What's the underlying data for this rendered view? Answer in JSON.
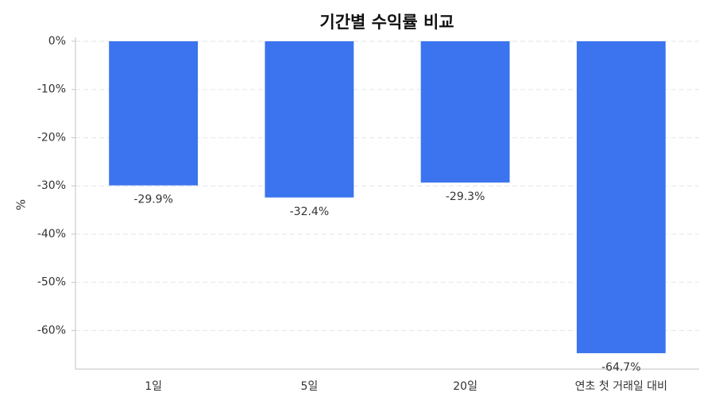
{
  "chart_data": {
    "type": "bar",
    "title": "기간별 수익률 비교",
    "y_label": "%",
    "categories": [
      "1일",
      "5일",
      "20일",
      "연초 첫 거래일 대비"
    ],
    "values": [
      -29.9,
      -32.4,
      -29.3,
      -64.7
    ],
    "value_labels": [
      "-29.9%",
      "-32.4%",
      "-29.3%",
      "-64.7%"
    ],
    "color": "#3b74ee",
    "ylim": [
      -68,
      0
    ],
    "yticks": [
      {
        "value": 0,
        "label": "0%"
      },
      {
        "value": -10,
        "label": "-10%"
      },
      {
        "value": -20,
        "label": "-20%"
      },
      {
        "value": -30,
        "label": "-30%"
      },
      {
        "value": -40,
        "label": "-40%"
      },
      {
        "value": -50,
        "label": "-50%"
      },
      {
        "value": -60,
        "label": "-60%"
      }
    ],
    "grid": true
  }
}
